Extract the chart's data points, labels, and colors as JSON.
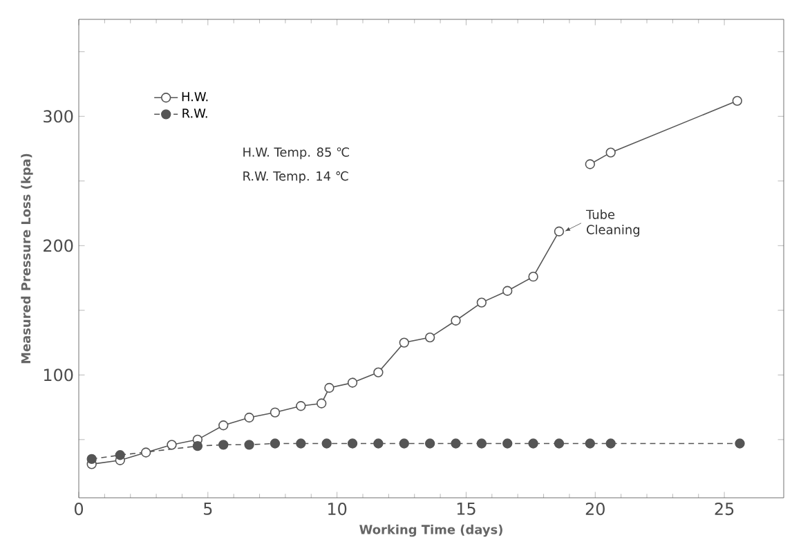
{
  "chart_data": {
    "type": "line",
    "xlabel": "Working Time (days)",
    "ylabel": "Measured Pressure Loss (kpa)",
    "xlim": [
      0,
      27.3
    ],
    "ylim": [
      5,
      375
    ],
    "xticks": [
      0,
      5,
      10,
      15,
      20,
      25
    ],
    "yticks": [
      {
        "value": 50,
        "label": null
      },
      100,
      {
        "value": 150,
        "label": null
      },
      200,
      {
        "value": 250,
        "label": null
      },
      300,
      {
        "value": 350,
        "label": null
      }
    ],
    "marker": "circle",
    "legend": "top left",
    "grid": false,
    "series": [
      {
        "name": "H.W.",
        "color": "#555555",
        "line_style": "solid",
        "x": [
          0.5,
          1.6,
          2.6,
          3.6,
          4.6,
          5.6,
          6.6,
          7.6,
          8.6,
          9.4,
          9.7,
          10.6,
          11.6,
          12.6,
          13.6,
          14.6,
          15.6,
          16.6,
          17.6,
          18.6,
          19.2,
          19.8,
          20.6,
          25.5
        ],
        "values": [
          31,
          34,
          40,
          46,
          50,
          61,
          67,
          71,
          76,
          78,
          90,
          94,
          102,
          125,
          129,
          142,
          156,
          165,
          176,
          211,
          null,
          263,
          272,
          312
        ]
      },
      {
        "name": "R.W.",
        "color": "#555555",
        "line_style": "dashed",
        "x": [
          0.5,
          1.6,
          4.6,
          5.6,
          6.6,
          7.6,
          8.6,
          9.6,
          10.6,
          11.6,
          12.6,
          13.6,
          14.6,
          15.6,
          16.6,
          17.6,
          18.6,
          19.8,
          20.6,
          25.6
        ],
        "values": [
          35,
          38,
          45,
          46,
          46,
          47,
          47,
          47,
          47,
          47,
          47,
          47,
          47,
          47,
          47,
          47,
          47,
          47,
          47,
          47
        ]
      }
    ],
    "annotations": [
      "H.W. Temp. 85 ℃",
      "R.W. Temp. 14 ℃",
      {
        "text": "Tube Cleaning",
        "x": 18.6,
        "y": 211
      }
    ]
  }
}
